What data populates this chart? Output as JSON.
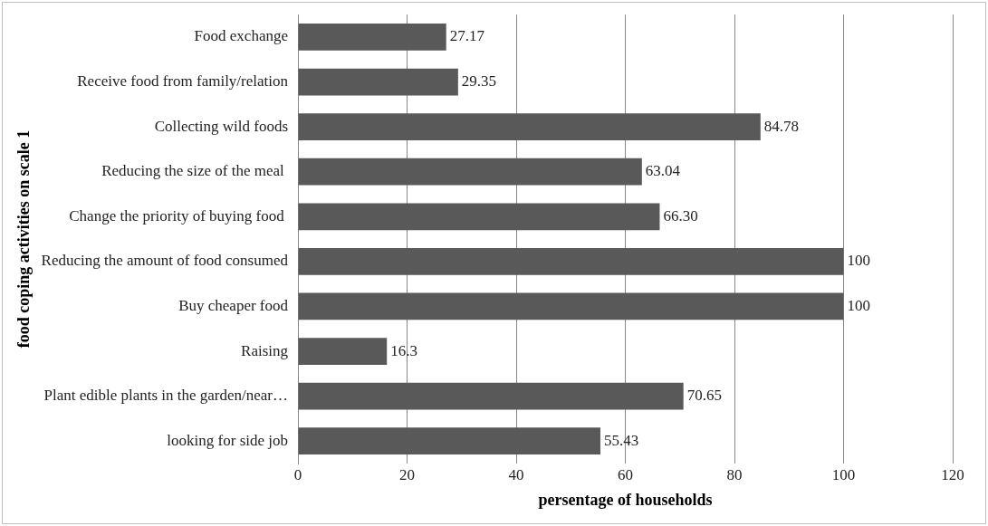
{
  "chart_data": {
    "type": "bar",
    "orientation": "horizontal",
    "xlabel": "persentage of households",
    "ylabel": "food coping activities on scale 1",
    "categories": [
      "Food exchange",
      "Receive food from family/relation",
      "Collecting wild foods",
      "Reducing the size of the meal ",
      "Change the priority of buying food ",
      "Reducing the amount of food consumed",
      "Buy cheaper food",
      "Raising",
      "Plant edible plants in the garden/near…",
      "looking for side job"
    ],
    "values": [
      27.17,
      29.35,
      84.78,
      63.04,
      66.3,
      100,
      100,
      16.3,
      70.65,
      55.43
    ],
    "value_labels": [
      "27.17",
      "29.35",
      "84.78",
      "63.04",
      "66.30",
      "100",
      "100",
      "16.3",
      "70.65",
      "55.43"
    ],
    "color": "#595959",
    "xlim": [
      0,
      120
    ],
    "xticks": [
      0,
      20,
      40,
      60,
      80,
      100,
      120
    ],
    "grid": "x",
    "legend": false
  }
}
